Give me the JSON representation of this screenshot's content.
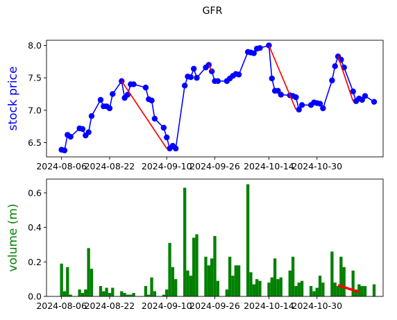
{
  "figure": {
    "title": "GFR"
  },
  "chart_data": [
    {
      "type": "line",
      "ylabel": "stock price",
      "ylabel_color": "#0000ff",
      "line_color": "#0000ff",
      "marker_color": "#0000ff",
      "trend_color": "#ff0000",
      "xlim": [
        "2024-08-01",
        "2024-11-21"
      ],
      "ylim": [
        6.28,
        8.08
      ],
      "yticks": [
        6.5,
        7.0,
        7.5,
        8.0
      ],
      "ytick_labels": [
        "6.5",
        "7.0",
        "7.5",
        "8.0"
      ],
      "xticks": [
        "2024-08-06",
        "2024-08-22",
        "2024-09-10",
        "2024-09-26",
        "2024-10-14",
        "2024-10-30"
      ],
      "xtick_labels": [
        "2024-08-06",
        "2024-08-22",
        "2024-09-10",
        "2024-09-26",
        "2024-10-14",
        "2024-10-30"
      ],
      "x": [
        "2024-08-06",
        "2024-08-07",
        "2024-08-08",
        "2024-08-09",
        "2024-08-12",
        "2024-08-13",
        "2024-08-14",
        "2024-08-15",
        "2024-08-16",
        "2024-08-19",
        "2024-08-20",
        "2024-08-21",
        "2024-08-22",
        "2024-08-23",
        "2024-08-26",
        "2024-08-27",
        "2024-08-28",
        "2024-08-29",
        "2024-08-30",
        "2024-09-03",
        "2024-09-04",
        "2024-09-05",
        "2024-09-06",
        "2024-09-09",
        "2024-09-10",
        "2024-09-11",
        "2024-09-12",
        "2024-09-13",
        "2024-09-16",
        "2024-09-17",
        "2024-09-18",
        "2024-09-19",
        "2024-09-20",
        "2024-09-23",
        "2024-09-24",
        "2024-09-25",
        "2024-09-26",
        "2024-09-27",
        "2024-09-30",
        "2024-10-01",
        "2024-10-02",
        "2024-10-03",
        "2024-10-04",
        "2024-10-07",
        "2024-10-08",
        "2024-10-09",
        "2024-10-10",
        "2024-10-11",
        "2024-10-14",
        "2024-10-15",
        "2024-10-16",
        "2024-10-17",
        "2024-10-18",
        "2024-10-21",
        "2024-10-22",
        "2024-10-23",
        "2024-10-24",
        "2024-10-25",
        "2024-10-28",
        "2024-10-29",
        "2024-10-30",
        "2024-10-31",
        "2024-11-01",
        "2024-11-04",
        "2024-11-05",
        "2024-11-06",
        "2024-11-07",
        "2024-11-08",
        "2024-11-11",
        "2024-11-12",
        "2024-11-13",
        "2024-11-14",
        "2024-11-15",
        "2024-11-18"
      ],
      "values": [
        6.39,
        6.38,
        6.62,
        6.59,
        6.72,
        6.71,
        6.61,
        6.66,
        6.91,
        7.16,
        7.06,
        7.06,
        7.03,
        7.25,
        7.45,
        7.19,
        7.24,
        7.4,
        7.4,
        7.35,
        7.17,
        7.15,
        6.87,
        6.73,
        6.58,
        6.41,
        6.45,
        6.41,
        7.38,
        7.52,
        7.51,
        7.64,
        7.5,
        7.66,
        7.7,
        7.6,
        7.45,
        7.45,
        7.45,
        7.49,
        7.53,
        7.56,
        7.55,
        7.9,
        7.89,
        7.88,
        7.95,
        7.96,
        8.0,
        7.49,
        7.3,
        7.3,
        7.24,
        7.23,
        7.22,
        7.2,
        7.01,
        7.08,
        7.08,
        7.12,
        7.11,
        7.1,
        7.03,
        7.46,
        7.68,
        7.83,
        7.78,
        7.66,
        7.29,
        7.14,
        7.18,
        7.16,
        7.22,
        7.13
      ],
      "trend_segments": [
        {
          "x": [
            "2024-08-26",
            "2024-09-10"
          ],
          "y": [
            7.45,
            6.41
          ]
        },
        {
          "x": [
            "2024-09-24",
            "2024-09-25"
          ],
          "y": [
            7.7,
            7.6
          ]
        },
        {
          "x": [
            "2024-10-14",
            "2024-10-23"
          ],
          "y": [
            8.0,
            7.01
          ]
        },
        {
          "x": [
            "2024-11-06",
            "2024-11-11"
          ],
          "y": [
            7.83,
            7.14
          ]
        }
      ]
    },
    {
      "type": "bar",
      "ylabel": "volume (m)",
      "ylabel_color": "#008000",
      "bar_color": "#008000",
      "trend_color": "#ff0000",
      "xlim": [
        "2024-08-01",
        "2024-11-21"
      ],
      "ylim": [
        0,
        0.68
      ],
      "yticks": [
        0.0,
        0.2,
        0.4,
        0.6
      ],
      "ytick_labels": [
        "0.0",
        "0.2",
        "0.4",
        "0.6"
      ],
      "xticks": [
        "2024-08-06",
        "2024-08-22",
        "2024-09-10",
        "2024-09-26",
        "2024-10-14",
        "2024-10-30"
      ],
      "xtick_labels": [
        "2024-08-06",
        "2024-08-22",
        "2024-09-10",
        "2024-09-26",
        "2024-10-14",
        "2024-10-30"
      ],
      "x": [
        "2024-08-06",
        "2024-08-07",
        "2024-08-08",
        "2024-08-09",
        "2024-08-12",
        "2024-08-13",
        "2024-08-14",
        "2024-08-15",
        "2024-08-16",
        "2024-08-19",
        "2024-08-20",
        "2024-08-21",
        "2024-08-22",
        "2024-08-23",
        "2024-08-26",
        "2024-08-27",
        "2024-08-28",
        "2024-08-29",
        "2024-08-30",
        "2024-09-03",
        "2024-09-04",
        "2024-09-05",
        "2024-09-06",
        "2024-09-09",
        "2024-09-10",
        "2024-09-11",
        "2024-09-12",
        "2024-09-13",
        "2024-09-16",
        "2024-09-17",
        "2024-09-18",
        "2024-09-19",
        "2024-09-20",
        "2024-09-23",
        "2024-09-24",
        "2024-09-25",
        "2024-09-26",
        "2024-09-27",
        "2024-09-30",
        "2024-10-01",
        "2024-10-02",
        "2024-10-03",
        "2024-10-04",
        "2024-10-07",
        "2024-10-08",
        "2024-10-09",
        "2024-10-10",
        "2024-10-11",
        "2024-10-14",
        "2024-10-15",
        "2024-10-16",
        "2024-10-17",
        "2024-10-18",
        "2024-10-21",
        "2024-10-22",
        "2024-10-23",
        "2024-10-24",
        "2024-10-25",
        "2024-10-28",
        "2024-10-29",
        "2024-10-30",
        "2024-10-31",
        "2024-11-01",
        "2024-11-04",
        "2024-11-05",
        "2024-11-06",
        "2024-11-07",
        "2024-11-08",
        "2024-11-11",
        "2024-11-12",
        "2024-11-13",
        "2024-11-14",
        "2024-11-15",
        "2024-11-18"
      ],
      "values": [
        0.19,
        0.03,
        0.17,
        0.01,
        0.04,
        0.02,
        0.04,
        0.28,
        0.16,
        0.06,
        0.03,
        0.05,
        0.02,
        0.05,
        0.03,
        0.02,
        0.01,
        0.01,
        0.02,
        0.06,
        0.01,
        0.11,
        0.03,
        0.01,
        0.04,
        0.31,
        0.17,
        0.1,
        0.63,
        0.15,
        0.12,
        0.34,
        0.36,
        0.23,
        0.18,
        0.22,
        0.35,
        0.09,
        0.04,
        0.23,
        0.12,
        0.18,
        0.18,
        0.65,
        0.14,
        0.07,
        0.1,
        0.09,
        0.08,
        0.11,
        0.22,
        0.1,
        0.11,
        0.15,
        0.23,
        0.06,
        0.08,
        0.09,
        0.06,
        0.03,
        0.05,
        0.12,
        0.08,
        0.26,
        0.08,
        0.06,
        0.23,
        0.17,
        0.15,
        0.04,
        0.07,
        0.06,
        0.06,
        0.07
      ],
      "trend_segments": [
        {
          "x": [
            "2024-11-06",
            "2024-11-13"
          ],
          "y": [
            0.065,
            0.025
          ]
        }
      ]
    }
  ]
}
